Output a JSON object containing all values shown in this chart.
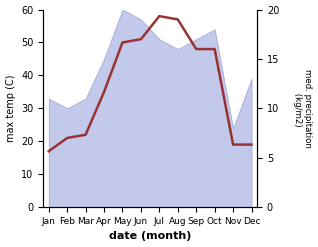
{
  "months": [
    "Jan",
    "Feb",
    "Mar",
    "Apr",
    "May",
    "Jun",
    "Jul",
    "Aug",
    "Sep",
    "Oct",
    "Nov",
    "Dec"
  ],
  "temperature": [
    17,
    21,
    22,
    35,
    50,
    51,
    58,
    57,
    48,
    48,
    19,
    19
  ],
  "precipitation": [
    11,
    10,
    11,
    15,
    20,
    19,
    17,
    16,
    17,
    18,
    8,
    13
  ],
  "temp_color": "#993333",
  "precip_color": "#b8c0e8",
  "precip_edge_color": "#9099cc",
  "ylim_temp": [
    0,
    60
  ],
  "ylim_precip": [
    0,
    20
  ],
  "temp_yticks": [
    0,
    10,
    20,
    30,
    40,
    50,
    60
  ],
  "precip_yticks": [
    0,
    5,
    10,
    15,
    20
  ],
  "ylabel_left": "max temp (C)",
  "ylabel_right": "med. precipitation\n (kg/m2)",
  "xlabel": "date (month)",
  "bg_color": "#ffffff",
  "temp_lw": 1.8
}
